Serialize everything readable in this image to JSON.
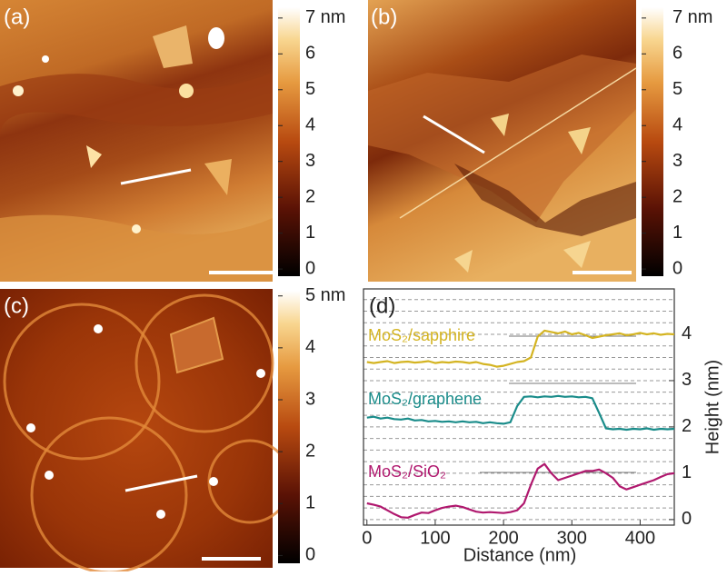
{
  "panels": [
    {
      "label": "(a)",
      "colorbar": {
        "lim": [
          -0.2,
          7.3
        ],
        "ticks": [
          0,
          1,
          2,
          3,
          4,
          5,
          6,
          {
            "value": 7,
            "label": "7 nm"
          }
        ]
      }
    },
    {
      "label": "(b)",
      "colorbar": {
        "lim": [
          -0.2,
          7.3
        ],
        "ticks": [
          0,
          1,
          2,
          3,
          4,
          5,
          6,
          {
            "value": 7,
            "label": "7 nm"
          }
        ]
      }
    },
    {
      "label": "(c)",
      "colorbar": {
        "lim": [
          -0.15,
          5.1
        ],
        "ticks": [
          0,
          1,
          2,
          3,
          4,
          {
            "value": 5,
            "label": "5 nm"
          }
        ]
      }
    }
  ],
  "chart_data": {
    "type": "line",
    "panel_label": "(d)",
    "xlabel": "Distance (nm)",
    "ylabel": "Height (nm)",
    "x": [
      0,
      10,
      20,
      30,
      40,
      50,
      60,
      70,
      80,
      90,
      100,
      110,
      120,
      130,
      140,
      150,
      160,
      170,
      180,
      190,
      200,
      210,
      220,
      230,
      240,
      250,
      260,
      270,
      280,
      290,
      300,
      310,
      320,
      330,
      340,
      350,
      360,
      370,
      380,
      390,
      400,
      410,
      420,
      430,
      440,
      450
    ],
    "series": [
      {
        "name": "MoS₂/sapphire",
        "color": "#d4b422",
        "values": [
          3.4,
          3.38,
          3.4,
          3.42,
          3.38,
          3.4,
          3.41,
          3.39,
          3.4,
          3.42,
          3.38,
          3.4,
          3.39,
          3.41,
          3.4,
          3.38,
          3.4,
          3.36,
          3.34,
          3.3,
          3.32,
          3.36,
          3.4,
          3.42,
          3.5,
          3.95,
          4.08,
          4.05,
          4.02,
          4.06,
          4.0,
          4.03,
          3.98,
          3.92,
          3.95,
          3.98,
          4.0,
          4.02,
          3.98,
          4.0,
          4.03,
          4.0,
          4.02,
          3.99,
          4.01,
          4.0
        ]
      },
      {
        "name": "MoS₂/graphene",
        "color": "#1a8c8a",
        "values": [
          2.2,
          2.22,
          2.18,
          2.2,
          2.17,
          2.16,
          2.18,
          2.14,
          2.15,
          2.12,
          2.13,
          2.11,
          2.12,
          2.1,
          2.12,
          2.1,
          2.11,
          2.08,
          2.1,
          2.08,
          2.07,
          2.1,
          2.45,
          2.65,
          2.66,
          2.64,
          2.66,
          2.65,
          2.67,
          2.65,
          2.66,
          2.64,
          2.65,
          2.62,
          2.3,
          1.97,
          1.95,
          1.96,
          1.94,
          1.96,
          1.95,
          1.97,
          1.94,
          1.96,
          1.95,
          1.96
        ]
      },
      {
        "name": "MoS₂/SiO₂",
        "color": "#b0186e",
        "values": [
          0.35,
          0.32,
          0.28,
          0.2,
          0.12,
          0.05,
          0.04,
          0.1,
          0.15,
          0.14,
          0.2,
          0.25,
          0.28,
          0.3,
          0.27,
          0.22,
          0.17,
          0.15,
          0.16,
          0.15,
          0.14,
          0.16,
          0.2,
          0.35,
          0.75,
          1.1,
          1.2,
          1.0,
          0.85,
          0.9,
          0.95,
          1.0,
          1.05,
          1.05,
          1.08,
          1.0,
          0.9,
          0.72,
          0.65,
          0.7,
          0.75,
          0.8,
          0.85,
          0.92,
          0.98,
          1.0
        ]
      }
    ],
    "xlim": [
      -5,
      450
    ],
    "ylim": [
      -0.12,
      4.98
    ],
    "xticks": [
      0,
      100,
      200,
      300,
      400
    ],
    "yticks": [
      0,
      1,
      2,
      3,
      4
    ],
    "grid": true,
    "minor_yticks": [
      0.25,
      0.5,
      0.75,
      1.25,
      1.5,
      1.75,
      2.25,
      2.5,
      2.75,
      3.25,
      3.5,
      3.75,
      4.25,
      4.5,
      4.75
    ]
  }
}
